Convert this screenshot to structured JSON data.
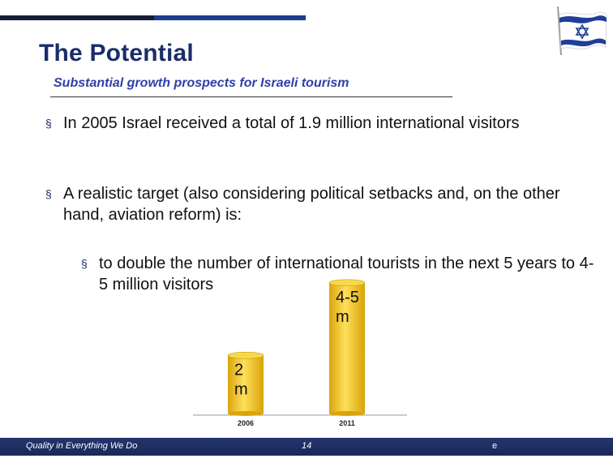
{
  "slide": {
    "title": "The Potential",
    "subtitle": "Substantial growth prospects for Israeli tourism",
    "bullet_marker": "§",
    "bullets": [
      "In 2005 Israel received a total of 1.9 million international visitors",
      "A realistic target (also considering political setbacks and, on the other hand, aviation reform) is:"
    ],
    "sub_bullets": [
      "to double the number of international tourists in the next 5 years to 4-5 million visitors"
    ]
  },
  "chart_data": {
    "type": "bar",
    "categories": [
      "2006",
      "2011"
    ],
    "values": [
      2,
      4.5
    ],
    "data_labels": [
      "2 m",
      "4-5 m"
    ],
    "bar_color": "#f2c318",
    "ylim": [
      0,
      4.8
    ]
  },
  "footer": {
    "left_text": "Quality in Everything We Do",
    "page_number": "14",
    "right_text": "e"
  },
  "flag": {
    "icon": "israel-flag-icon",
    "colors": {
      "stripe": "#1f3d99",
      "field": "#ffffff"
    }
  },
  "colors": {
    "title": "#1a2d6b",
    "subtitle": "#3040a8",
    "topbar_dark": "#141e36",
    "topbar_blue": "#1c3c8c",
    "footer": "#1f2f66"
  }
}
